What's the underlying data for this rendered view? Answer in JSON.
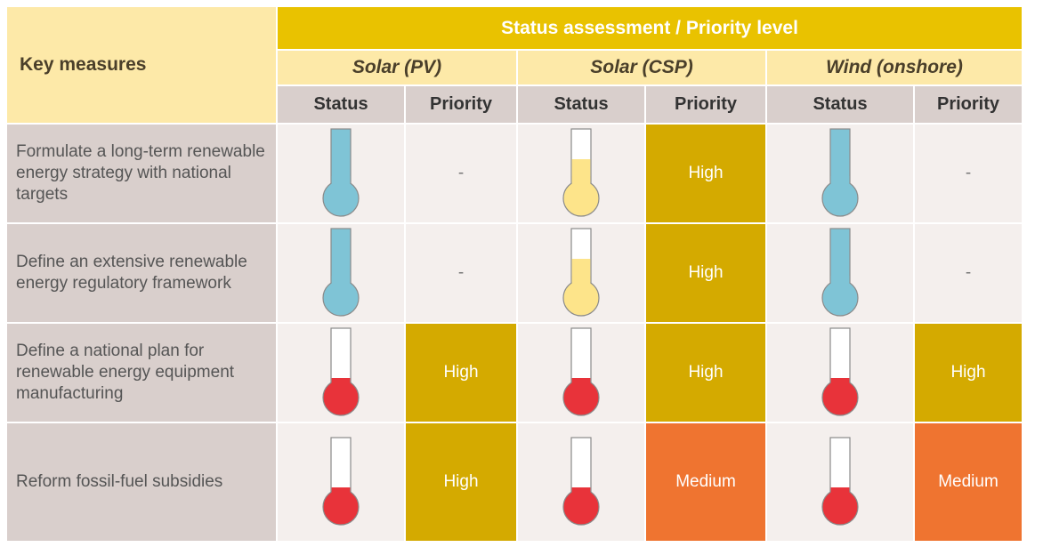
{
  "header": {
    "title": "Key measures",
    "group": "Status assessment / Priority level",
    "technologies": [
      "Solar (PV)",
      "Solar (CSP)",
      "Wind (onshore)"
    ],
    "subheaders": [
      "Status",
      "Priority",
      "Status",
      "Priority",
      "Status",
      "Priority"
    ]
  },
  "rows": [
    {
      "measure": "Formulate a long-term renewable energy strategy with national targets",
      "priorities": [
        "-",
        "High",
        "-"
      ]
    },
    {
      "measure": "Define an extensive renewable energy regulatory framework",
      "priorities": [
        "-",
        "High",
        "-"
      ]
    },
    {
      "measure": "Define a national plan for renewable energy equipment manufacturing",
      "priorities": [
        "High",
        "High",
        "High"
      ]
    },
    {
      "measure": "Reform fossil-fuel subsidies",
      "priorities": [
        "High",
        "Medium",
        "Medium"
      ]
    }
  ]
}
